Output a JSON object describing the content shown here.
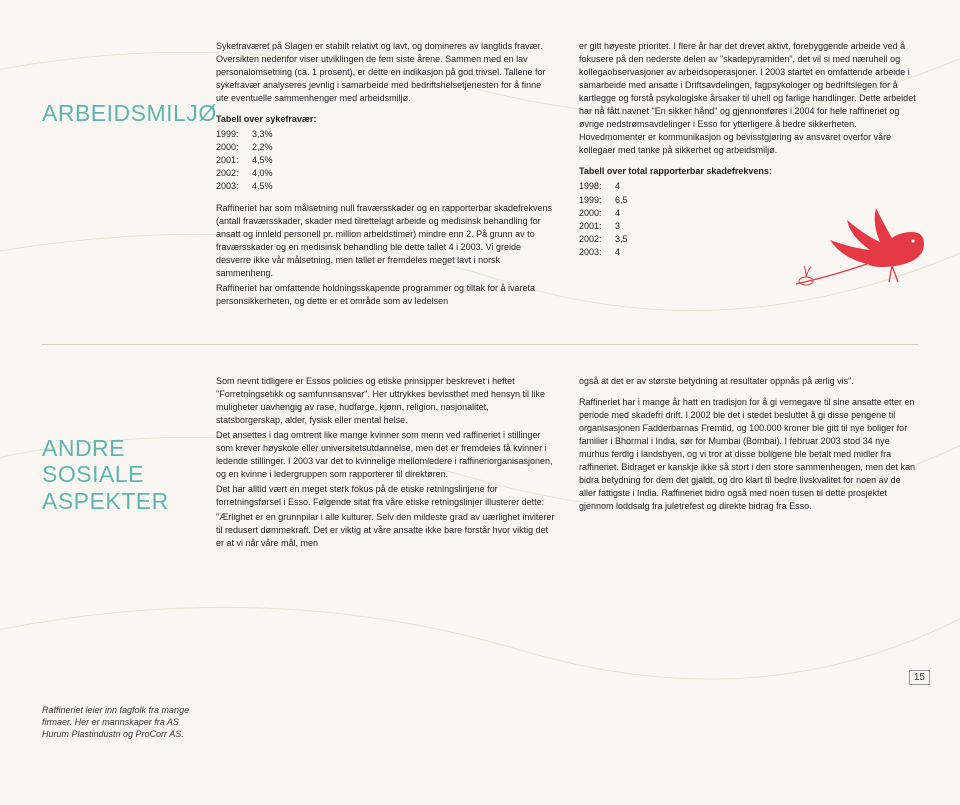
{
  "background": "#faf7f2",
  "accent_color": "#5fb5b0",
  "bird_color": "#e63946",
  "section1": {
    "heading": "ARBEIDSMILJØ",
    "col1": {
      "p1": "Sykefraværet på Slagen er stabilt relativt og lavt, og domineres av langtids fravær. Oversikten nedenfor viser utviklingen de fem siste årene. Sammen med en lav personalomsetning (ca. 1 prosent), er dette en indikasjon på god trivsel. Tallene for sykefravær analyseres jevnlig i samarbeide med bedriftshelsetjenesten for å finne ute eventuelle sammenhenger med arbeidsmiljø.",
      "table_head": "Tabell over sykefravær:",
      "rows": [
        {
          "y": "1999:",
          "v": "3,3%"
        },
        {
          "y": "2000:",
          "v": "2,2%"
        },
        {
          "y": "2001:",
          "v": "4,5%"
        },
        {
          "y": "2002:",
          "v": "4,0%"
        },
        {
          "y": "2003:",
          "v": "4,5%"
        }
      ],
      "p2": "Raffineriet har som målsetning null fraværsskader og en rapporterbar skadefrekvens (antall fraværsskader, skader med tilrettelagt arbeide og medisinsk behandling for ansatt og innleid personell pr. million arbeidstimer) mindre enn 2. På grunn av to fraværsskader og en medisinsk behandling ble dette tallet 4 i 2003. Vi greide desverre ikke vår målsetning, men tallet er fremdeles meget lavt i norsk sammenheng.",
      "p3": "Raffineriet har omfattende holdningsskapende programmer og tiltak for å ivareta personsikkerheten, og dette er et område som av ledelsen"
    },
    "col2": {
      "p1": "er gitt høyeste prioritet. I flere år har det drevet aktivt, forebyggende arbeide ved å fokusere på den nederste delen av \"skadepyramiden\", det vil si med næruhell og kollegaobservasjoner av arbeidsoperasjoner. I 2003 startet en omfattende arbeide i samarbeide med ansatte i Driftsavdelingen, fagpsykologer og bedriftslegen for å kartlegge og forstå psykologiske årsaker til uhell og farlige handlinger. Dette arbeidet har nå fått navnet \"En sikker hånd\" og gjennomføres i 2004 for hele raffineriet og øvrige nedstrømsavdelinger i Esso for ytterligere å bedre sikkerheten. Hovedmomenter er kommunikasjon og bevisstgjøring av ansvaret overfor våre kollegaer med tanke på sikkerhet og arbeidsmiljø.",
      "table_head": "Tabell over total rapporterbar skadefrekvens:",
      "rows": [
        {
          "y": "1998:",
          "v": "4"
        },
        {
          "y": "1999:",
          "v": "6,5"
        },
        {
          "y": "2000:",
          "v": "4"
        },
        {
          "y": "2001:",
          "v": "3"
        },
        {
          "y": "2002:",
          "v": "3,5"
        },
        {
          "y": "2003:",
          "v": "4"
        }
      ]
    }
  },
  "section2": {
    "heading": "ANDRE SOSIALE ASPEKTER",
    "subnote": "Raffineriet leier inn fagfolk fra mange firmaer. Her er mannskaper fra AS Hurum Plastindustri og ProCorr AS.",
    "col1": {
      "p1": "Som nevnt tidligere er Essos policies og etiske prinsipper beskrevet i heftet \"Forretningsetikk og samfunnsansvar\". Her uttrykkes bevissthet med hensyn til like muligheter uavhengig av rase, hudfarge, kjønn, religion, nasjonalitet, statsborgerskap, alder, fysisk eller mental helse.",
      "p2": "Det ansettes i dag omtrent like mange kvinner som menn ved raffineriet i stillinger som krever høyskole eller universitetsutdannelse, men det er fremdeles få kvinner i ledende stillinger. I 2003 var det to kvinnelige mellomledere i raffineriorganisasjonen, og en kvinne i ledergruppen som rapporterer til direktøren.",
      "p3": "Det har alltid vært en meget sterk fokus på de etiske retningslinjene for forretningsførsel i Esso. Følgende sitat fra våre etiske retningslinjer illusterer dette:",
      "p4": "\"Ærlighet er en grunnpilar i alle kulturer. Selv den mildeste grad av uærlighet inviterer til redusert dømmekraft. Det er viktig at våre ansatte ikke bare forstår hvor viktig det er at vi når våre mål, men"
    },
    "col2": {
      "p1": "også at det er av største betydning at resultater oppnås på ærlig vis\".",
      "p2": "Raffineriet har i mange år hatt en tradisjon for å gi vernegave til sine ansatte etter en periode med skadefri drift. I 2002 ble det i stedet besluttet å gi disse pengene til organisasjonen Fadderbarnas Fremtid, og 100.000 kroner ble gitt til nye boliger for familier i Bhormal i India, sør for Mumbai (Bombai). I februar 2003 stod 34 nye murhus ferdig i landsbyen, og vi tror at disse boligene ble betalt med midler fra raffineriet. Bidraget er kanskje ikke så stort i den store sammenhengen, men det kan bidra betydning for dem det gjaldt, og dro klart til bedre livskvalitet for noen av de aller fattigste i India. Raffineriet bidro også med noen tusen til dette prosjektet gjennom loddsalg fra juletrefest og direkte bidrag fra Esso."
    }
  },
  "page_number": "15"
}
